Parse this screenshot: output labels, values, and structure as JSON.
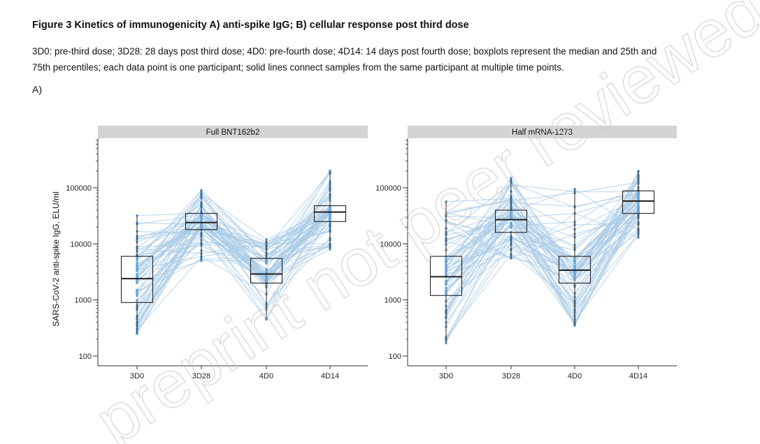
{
  "figure": {
    "title": "Figure 3 Kinetics of immunogenicity A) anti-spike IgG; B) cellular response post third dose",
    "caption_line1": "3D0: pre-third dose; 3D28: 28 days post third dose; 4D0: pre-fourth dose; 4D14: 14 days post fourth dose; boxplots represent the median and 25th and",
    "caption_line2": "75th percentiles; each data point is one participant; solid lines connect samples from the same participant at multiple time points.",
    "panel_label": "A)",
    "watermark": "preprint not peer reviewed"
  },
  "colors": {
    "lines": "#a9cbe6",
    "points": "#6ea8d8",
    "strip": "#d4d4d4",
    "box": "#222222"
  },
  "chart_data": [
    {
      "type": "boxplot",
      "title": "Full BNT162b2",
      "ylabel": "SARS-CoV-2 anti-spike IgG, ELU/ml",
      "yscale": "log",
      "ylim": [
        100,
        300000
      ],
      "yticks": [
        100,
        1000,
        10000,
        100000
      ],
      "ytick_labels": [
        "100",
        "1000",
        "10000",
        "100000"
      ],
      "categories": [
        "3D0",
        "3D28",
        "4D0",
        "4D14"
      ],
      "boxes": [
        {
          "q1": 900,
          "median": 2400,
          "q3": 6000,
          "min": 250,
          "max": 32000
        },
        {
          "q1": 18000,
          "median": 24000,
          "q3": 35000,
          "min": 5000,
          "max": 90000
        },
        {
          "q1": 2000,
          "median": 2900,
          "q3": 5500,
          "min": 450,
          "max": 12000
        },
        {
          "q1": 25000,
          "median": 37000,
          "q3": 48000,
          "min": 8000,
          "max": 200000
        }
      ]
    },
    {
      "type": "boxplot",
      "title": "Half mRNA-1273",
      "ylabel": "",
      "yscale": "log",
      "ylim": [
        100,
        300000
      ],
      "yticks": [
        100,
        1000,
        10000,
        100000
      ],
      "ytick_labels": [
        "100",
        "1000",
        "10000",
        "100000"
      ],
      "categories": [
        "3D0",
        "3D28",
        "4D0",
        "4D14"
      ],
      "boxes": [
        {
          "q1": 1200,
          "median": 2600,
          "q3": 6000,
          "min": 170,
          "max": 57000
        },
        {
          "q1": 16000,
          "median": 27000,
          "q3": 40000,
          "min": 5500,
          "max": 150000
        },
        {
          "q1": 2000,
          "median": 3400,
          "q3": 6000,
          "min": 350,
          "max": 95000
        },
        {
          "q1": 35000,
          "median": 58000,
          "q3": 88000,
          "min": 13000,
          "max": 200000
        }
      ]
    }
  ]
}
